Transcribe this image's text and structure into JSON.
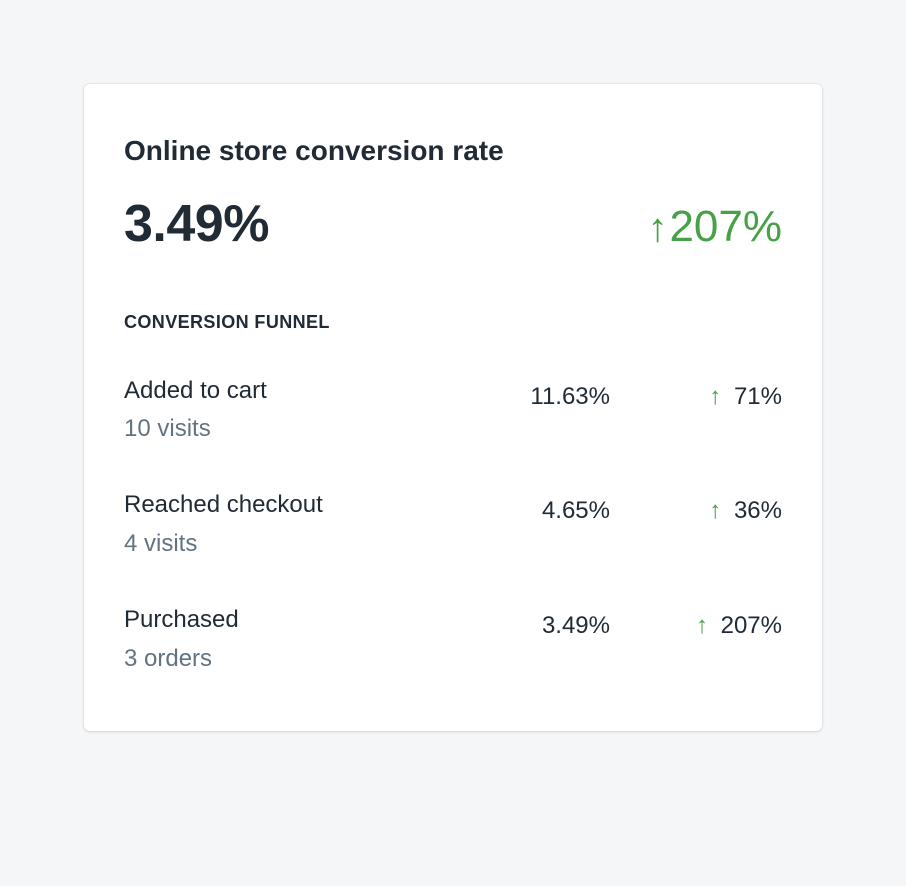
{
  "colors": {
    "background": "#f4f6f8",
    "card": "#ffffff",
    "text": "#212b36",
    "subdued": "#637381",
    "success": "#47a147"
  },
  "card": {
    "title": "Online store conversion rate",
    "rate": "3.49%",
    "delta_arrow": "↑",
    "delta": "207%",
    "funnel_heading": "CONVERSION FUNNEL",
    "rows": [
      {
        "label": "Added to cart",
        "sub": "10 visits",
        "value": "11.63%",
        "arrow": "↑",
        "change": "71%"
      },
      {
        "label": "Reached checkout",
        "sub": "4 visits",
        "value": "4.65%",
        "arrow": "↑",
        "change": "36%"
      },
      {
        "label": "Purchased",
        "sub": "3 orders",
        "value": "3.49%",
        "arrow": "↑",
        "change": "207%"
      }
    ]
  }
}
